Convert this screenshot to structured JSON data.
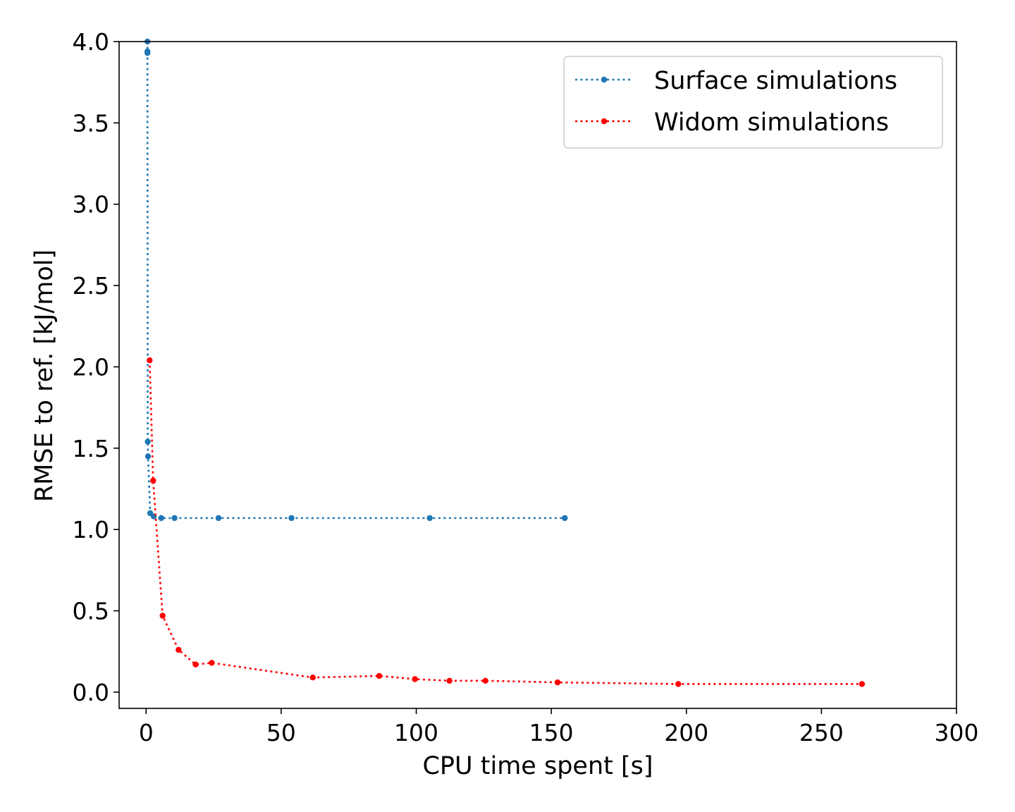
{
  "chart_data": {
    "type": "line",
    "title": "",
    "xlabel": "CPU time spent [s]",
    "ylabel": "RMSE to ref. [kJ/mol]",
    "xlim": [
      -10,
      300
    ],
    "ylim": [
      -0.1,
      4.0
    ],
    "xticks": [
      "0",
      "50",
      "100",
      "150",
      "200",
      "250",
      "300"
    ],
    "yticks": [
      "0.0",
      "0.5",
      "1.0",
      "1.5",
      "2.0",
      "2.5",
      "3.0",
      "3.5",
      "4.0"
    ],
    "grid": false,
    "legend_position": "top-right",
    "series": [
      {
        "name": "Surface simulations",
        "color": "#1f77b4",
        "line_style": "dotted",
        "marker": "circle",
        "x": [
          0.5,
          0.5,
          0.5,
          0.6,
          0.7,
          1.5,
          2.8,
          5.6,
          10.5,
          26.8,
          53.8,
          105.0,
          155.0
        ],
        "y": [
          4.0,
          3.94,
          3.93,
          1.54,
          1.45,
          1.1,
          1.08,
          1.07,
          1.07,
          1.07,
          1.07,
          1.07,
          1.07
        ]
      },
      {
        "name": "Widom simulations",
        "color": "#ff0000",
        "line_style": "dotted",
        "marker": "circle",
        "x": [
          1.3,
          2.6,
          6.1,
          12.0,
          18.3,
          24.3,
          61.7,
          86.3,
          99.5,
          112.3,
          125.6,
          152.3,
          197.0,
          265.0
        ],
        "y": [
          2.04,
          1.3,
          0.47,
          0.26,
          0.17,
          0.18,
          0.09,
          0.1,
          0.08,
          0.07,
          0.07,
          0.06,
          0.05,
          0.05
        ]
      }
    ]
  }
}
